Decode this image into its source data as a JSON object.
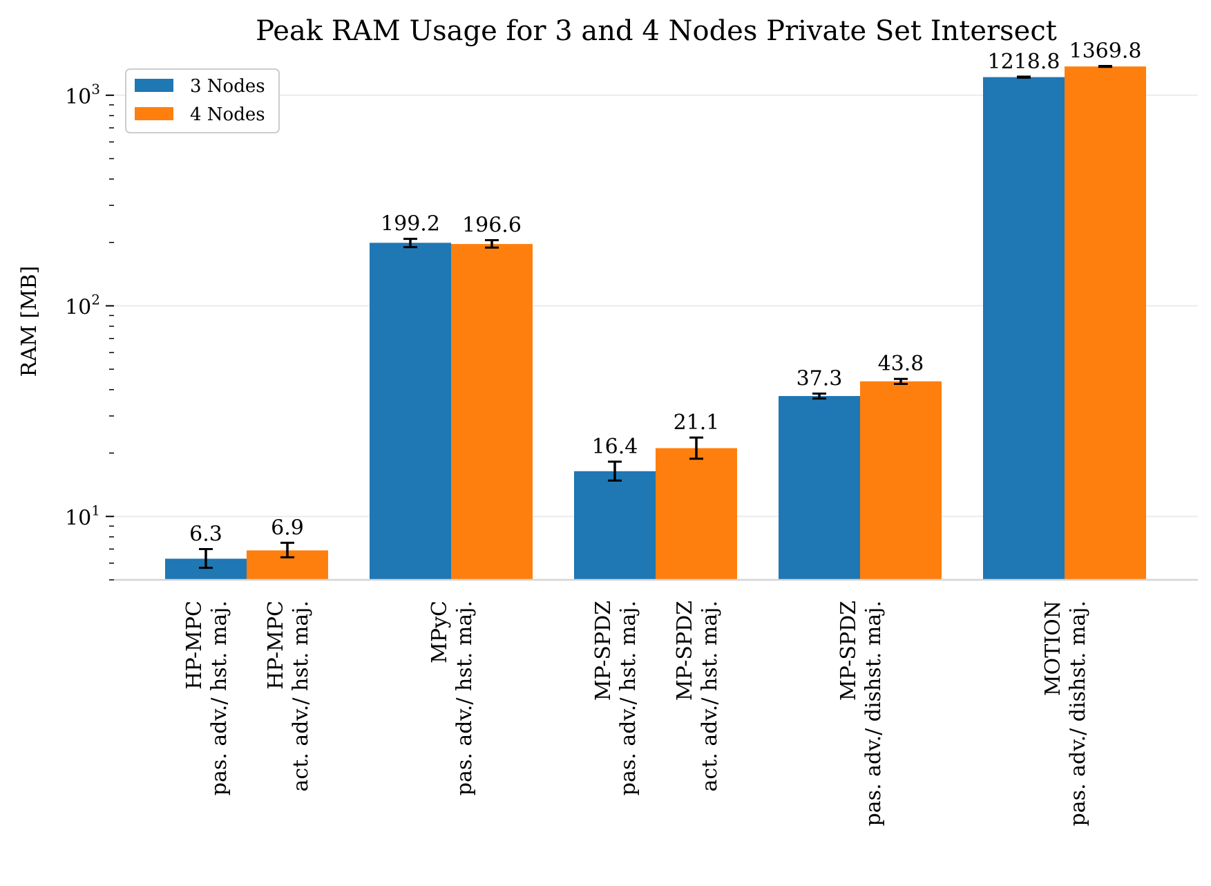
{
  "chart_data": {
    "type": "bar",
    "title": "Peak RAM Usage for 3 and 4 Nodes Private Set Intersect",
    "xlabel": "",
    "ylabel": "RAM [MB]",
    "yscale": "log",
    "ylim": [
      5,
      1800
    ],
    "yticks": [
      {
        "value": 10,
        "base": "10",
        "exp": "1"
      },
      {
        "value": 100,
        "base": "10",
        "exp": "2"
      },
      {
        "value": 1000,
        "base": "10",
        "exp": "3"
      }
    ],
    "grid": "horizontal",
    "legend": {
      "position": "top-left",
      "entries": [
        "3 Nodes",
        "4 Nodes"
      ]
    },
    "colors": {
      "3 Nodes": "#1f77b4",
      "4 Nodes": "#ff7f0e"
    },
    "groups": [
      {
        "bars": [
          {
            "series": "3 Nodes",
            "value": 6.3,
            "label": "6.3",
            "err_low": 5.7,
            "err_high": 7.0,
            "tick": [
              "HP-MPC",
              "pas. adv./ hst. maj."
            ]
          },
          {
            "series": "4 Nodes",
            "value": 6.9,
            "label": "6.9",
            "err_low": 6.4,
            "err_high": 7.5,
            "tick": [
              "HP-MPC",
              "act. adv./ hst. maj."
            ]
          }
        ]
      },
      {
        "tick": [
          "MPyC",
          "pas. adv./ hst. maj."
        ],
        "bars": [
          {
            "series": "3 Nodes",
            "value": 199.2,
            "label": "199.2",
            "err_low": 190,
            "err_high": 208
          },
          {
            "series": "4 Nodes",
            "value": 196.6,
            "label": "196.6",
            "err_low": 189,
            "err_high": 205
          }
        ]
      },
      {
        "bars": [
          {
            "series": "3 Nodes",
            "value": 16.4,
            "label": "16.4",
            "err_low": 14.8,
            "err_high": 18.2,
            "tick": [
              "MP-SPDZ",
              "pas. adv./ hst. maj."
            ]
          },
          {
            "series": "4 Nodes",
            "value": 21.1,
            "label": "21.1",
            "err_low": 18.8,
            "err_high": 23.7,
            "tick": [
              "MP-SPDZ",
              "act. adv./ hst. maj."
            ]
          }
        ]
      },
      {
        "tick": [
          "MP-SPDZ",
          "pas. adv./ dishst. maj."
        ],
        "bars": [
          {
            "series": "3 Nodes",
            "value": 37.3,
            "label": "37.3",
            "err_low": 36.3,
            "err_high": 38.3
          },
          {
            "series": "4 Nodes",
            "value": 43.8,
            "label": "43.8",
            "err_low": 42.6,
            "err_high": 45.0
          }
        ]
      },
      {
        "tick": [
          "MOTION",
          "pas. adv./ dishst. maj."
        ],
        "bars": [
          {
            "series": "3 Nodes",
            "value": 1218.8,
            "label": "1218.8",
            "err_low": 1212,
            "err_high": 1225
          },
          {
            "series": "4 Nodes",
            "value": 1369.8,
            "label": "1369.8",
            "err_low": 1363,
            "err_high": 1377
          }
        ]
      }
    ]
  }
}
